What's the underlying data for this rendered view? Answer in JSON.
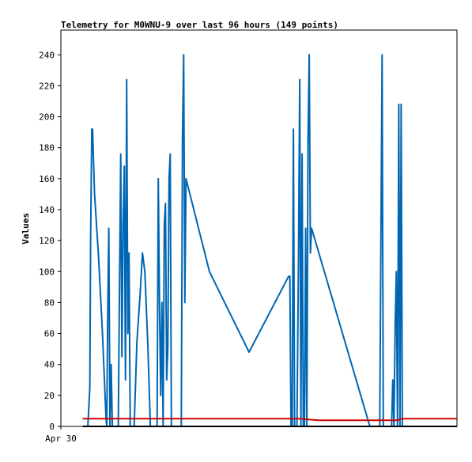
{
  "chart_data": {
    "type": "line",
    "title": "Telemetry for M0WNU-9 over last 96 hours (149 points)",
    "xlabel": "",
    "ylabel": "Values",
    "ylim": [
      0,
      256
    ],
    "xlim": [
      0,
      100
    ],
    "y_ticks": [
      0,
      20,
      40,
      60,
      80,
      100,
      120,
      140,
      160,
      180,
      200,
      220,
      240
    ],
    "x_tick_labels": [
      {
        "x": 0,
        "label": "Apr 30"
      }
    ],
    "grid": false,
    "series": [
      {
        "color": "#0066b3",
        "points": [
          [
            5.5,
            0
          ],
          [
            6.8,
            0
          ],
          [
            7.3,
            25
          ],
          [
            7.5,
            120
          ],
          [
            7.8,
            192
          ],
          [
            8.0,
            192
          ],
          [
            8.2,
            175
          ],
          [
            8.5,
            150
          ],
          [
            9.5,
            110
          ],
          [
            10.5,
            60
          ],
          [
            11.0,
            30
          ],
          [
            11.4,
            5
          ],
          [
            11.6,
            0
          ],
          [
            11.8,
            65
          ],
          [
            12.1,
            128
          ],
          [
            12.4,
            0
          ],
          [
            12.7,
            40
          ],
          [
            13.0,
            0
          ],
          [
            13.4,
            0
          ],
          [
            14.5,
            0
          ],
          [
            14.8,
            88
          ],
          [
            15.1,
            176
          ],
          [
            15.4,
            45
          ],
          [
            15.7,
            130
          ],
          [
            16.0,
            168
          ],
          [
            16.3,
            30
          ],
          [
            16.6,
            224
          ],
          [
            16.9,
            60
          ],
          [
            17.2,
            112
          ],
          [
            17.5,
            0
          ],
          [
            18.5,
            0
          ],
          [
            19.2,
            55
          ],
          [
            20.0,
            85
          ],
          [
            20.6,
            112
          ],
          [
            21.2,
            100
          ],
          [
            22.0,
            50
          ],
          [
            22.6,
            0
          ],
          [
            24.3,
            0
          ],
          [
            24.6,
            160
          ],
          [
            24.9,
            80
          ],
          [
            25.2,
            20
          ],
          [
            25.5,
            80
          ],
          [
            25.8,
            0
          ],
          [
            26.1,
            130
          ],
          [
            26.4,
            144
          ],
          [
            26.7,
            30
          ],
          [
            27.0,
            50
          ],
          [
            27.3,
            160
          ],
          [
            27.6,
            176
          ],
          [
            27.9,
            0
          ],
          [
            30.4,
            0
          ],
          [
            30.7,
            185
          ],
          [
            31.0,
            240
          ],
          [
            31.3,
            80
          ],
          [
            31.6,
            160
          ],
          [
            37.5,
            100
          ],
          [
            47.5,
            48
          ],
          [
            57.5,
            97
          ],
          [
            57.8,
            97
          ],
          [
            58.1,
            0
          ],
          [
            58.4,
            0
          ],
          [
            58.7,
            192
          ],
          [
            59.0,
            0
          ],
          [
            59.3,
            0
          ],
          [
            59.6,
            0
          ],
          [
            60.0,
            112
          ],
          [
            60.3,
            224
          ],
          [
            60.6,
            0
          ],
          [
            60.9,
            176
          ],
          [
            61.2,
            0
          ],
          [
            61.5,
            0
          ],
          [
            61.8,
            128
          ],
          [
            62.1,
            0
          ],
          [
            62.4,
            184
          ],
          [
            62.7,
            240
          ],
          [
            63.0,
            112
          ],
          [
            63.3,
            128
          ],
          [
            78.0,
            0
          ],
          [
            78.3,
            0
          ],
          [
            80.5,
            0
          ],
          [
            80.8,
            120
          ],
          [
            81.1,
            240
          ],
          [
            81.4,
            0
          ],
          [
            82.0,
            0
          ],
          [
            82.5,
            0
          ],
          [
            83.5,
            0
          ],
          [
            83.8,
            30
          ],
          [
            84.1,
            0
          ],
          [
            84.4,
            65
          ],
          [
            84.7,
            100
          ],
          [
            85.0,
            0
          ],
          [
            85.3,
            208
          ],
          [
            85.6,
            0
          ],
          [
            85.9,
            208
          ],
          [
            86.2,
            0
          ]
        ]
      },
      {
        "color": "#cc0000",
        "points": [
          [
            5.5,
            5
          ],
          [
            30,
            5
          ],
          [
            60,
            5
          ],
          [
            65,
            4
          ],
          [
            85,
            4
          ],
          [
            86,
            5
          ],
          [
            100,
            5
          ]
        ]
      },
      {
        "color": "#000000",
        "points": [
          [
            5.5,
            0
          ],
          [
            100,
            0
          ]
        ]
      }
    ]
  }
}
